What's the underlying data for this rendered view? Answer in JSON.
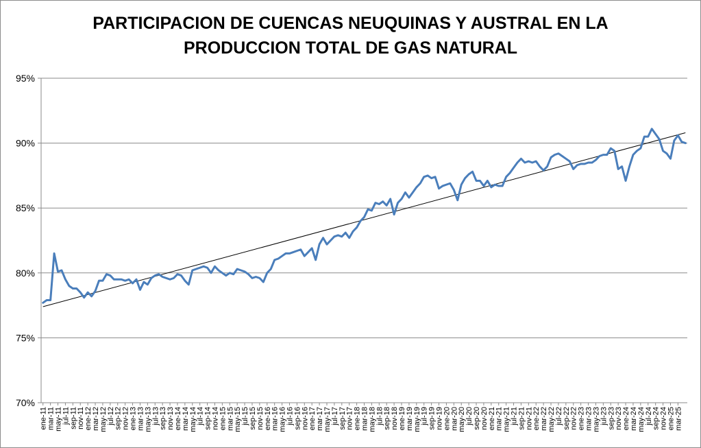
{
  "chart_data": {
    "type": "line",
    "title_lines": [
      "PARTICIPACION DE CUENCAS NEUQUINAS Y AUSTRAL EN LA",
      "PRODUCCION TOTAL DE GAS NATURAL"
    ],
    "xlabel": "",
    "ylabel": "",
    "y_tick_labels": [
      "95%",
      "90%",
      "85%",
      "80%",
      "75%",
      "70%"
    ],
    "ylim": [
      70,
      95
    ],
    "x_tick_labels": [
      "ene-11",
      "mar-11",
      "may-11",
      "jul-11",
      "sep-11",
      "nov-11",
      "ene-12",
      "mar-12",
      "may-12",
      "jul-12",
      "sep-12",
      "nov-12",
      "ene-13",
      "mar-13",
      "may-13",
      "jul-13",
      "sep-13",
      "nov-13",
      "ene-14",
      "mar-14",
      "may-14",
      "jul-14",
      "sep-14",
      "nov-14",
      "ene-15",
      "mar-15",
      "may-15",
      "jul-15",
      "sep-15",
      "nov-15",
      "ene-16",
      "mar-16",
      "may-16",
      "jul-16",
      "sep-16",
      "nov-16",
      "ene-17",
      "mar-17",
      "may-17",
      "jul-17",
      "sep-17",
      "nov-17",
      "ene-18",
      "mar-18",
      "may-18",
      "jul-18",
      "sep-18",
      "nov-18",
      "ene-19",
      "mar-19",
      "may-19",
      "jul-19",
      "sep-19",
      "nov-19",
      "ene-20",
      "mar-20",
      "may-20",
      "jul-20",
      "sep-20",
      "nov-20",
      "ene-21",
      "mar-21",
      "may-21",
      "jul-21",
      "sep-21",
      "nov-21",
      "ene-22",
      "mar-22",
      "may-22",
      "jul-22",
      "sep-22",
      "nov-22",
      "ene-23",
      "mar-23",
      "may-23",
      "jul-23",
      "sep-23",
      "nov-23",
      "ene-24",
      "mar-24",
      "may-24",
      "jul-24",
      "sep-24",
      "nov-24",
      "ene-25",
      "mar-25"
    ],
    "grid": true,
    "legend": "none",
    "series": [
      {
        "color": "#4a7ebb",
        "values": [
          77.7,
          77.9,
          77.9,
          81.5,
          80.1,
          80.2,
          79.5,
          79.0,
          78.8,
          78.8,
          78.5,
          78.1,
          78.5,
          78.2,
          78.6,
          79.4,
          79.4,
          79.9,
          79.8,
          79.5,
          79.5,
          79.5,
          79.4,
          79.5,
          79.2,
          79.5,
          78.7,
          79.3,
          79.1,
          79.6,
          79.8,
          79.9,
          79.7,
          79.6,
          79.5,
          79.6,
          79.9,
          79.8,
          79.4,
          79.1,
          80.2,
          80.3,
          80.4,
          80.5,
          80.4,
          80.0,
          80.5,
          80.2,
          80.0,
          79.8,
          80.0,
          79.9,
          80.3,
          80.2,
          80.1,
          79.9,
          79.6,
          79.7,
          79.6,
          79.3,
          80.0,
          80.3,
          81.0,
          81.1,
          81.3,
          81.5,
          81.5,
          81.6,
          81.7,
          81.8,
          81.3,
          81.6,
          81.9,
          81.0,
          82.2,
          82.7,
          82.2,
          82.5,
          82.8,
          82.9,
          82.8,
          83.1,
          82.7,
          83.2,
          83.5,
          84.0,
          84.3,
          84.9,
          84.8,
          85.4,
          85.3,
          85.5,
          85.2,
          85.7,
          84.5,
          85.4,
          85.7,
          86.2,
          85.8,
          86.2,
          86.6,
          86.9,
          87.4,
          87.5,
          87.3,
          87.4,
          86.5,
          86.7,
          86.8,
          86.9,
          86.4,
          85.6,
          86.8,
          87.3,
          87.6,
          87.8,
          87.1,
          87.1,
          86.7,
          87.1,
          86.6,
          86.8,
          86.7,
          86.7,
          87.4,
          87.7,
          88.1,
          88.5,
          88.8,
          88.5,
          88.6,
          88.5,
          88.6,
          88.2,
          87.9,
          88.2,
          88.9,
          89.1,
          89.2,
          89.0,
          88.8,
          88.6,
          88.0,
          88.3,
          88.4,
          88.4,
          88.5,
          88.5,
          88.7,
          89.0,
          89.1,
          89.1,
          89.6,
          89.4,
          88.0,
          88.2,
          87.1,
          88.2,
          89.1,
          89.4,
          89.6,
          90.5,
          90.5,
          91.1,
          90.7,
          90.3,
          89.4,
          89.2,
          88.8,
          90.2,
          90.6,
          90.1,
          90.0
        ]
      }
    ],
    "trendline": {
      "color": "#000000",
      "start": 77.4,
      "end": 90.8
    }
  }
}
